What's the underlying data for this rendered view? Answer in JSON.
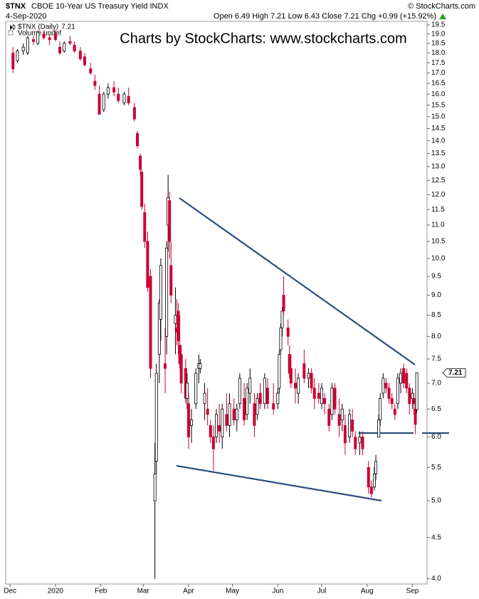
{
  "header": {
    "symbol": "$TNX",
    "name": "CBOE 10-Year US Treasury Yield INDX",
    "source": "© StockCharts.com",
    "date": "4-Sep-2020",
    "quote": "Open 6.49  High 7.21  Low 6.43  Close 7.21  Chg +0.99 (+15.92%)"
  },
  "chart_data": {
    "type": "candlestick",
    "watermark": "Charts by StockCharts:  www.stockcharts.com",
    "volume_label": "Volume undef",
    "log_scale": true,
    "grid": false,
    "up_color": "#000000",
    "down_color": "#cc0033",
    "xlim": [
      -3,
      285
    ],
    "xticks": [
      {
        "value": 0,
        "label": "Dec"
      },
      {
        "value": 31,
        "label": "2020"
      },
      {
        "value": 62,
        "label": "Feb"
      },
      {
        "value": 91,
        "label": "Mar"
      },
      {
        "value": 122,
        "label": "Apr"
      },
      {
        "value": 152,
        "label": "May"
      },
      {
        "value": 183,
        "label": "Jun"
      },
      {
        "value": 213,
        "label": "Jul"
      },
      {
        "value": 244,
        "label": "Aug"
      },
      {
        "value": 275,
        "label": "Sep"
      }
    ],
    "ylim": [
      3.94,
      19.7
    ],
    "yticks": [
      {
        "value": 4,
        "label": "4.0"
      },
      4.5,
      {
        "value": 5,
        "label": "5.0"
      },
      5.5,
      {
        "value": 6,
        "label": "6.0"
      },
      6.5,
      {
        "value": 7,
        "label": "7.0"
      },
      7.5,
      {
        "value": 8,
        "label": "8.0"
      },
      8.5,
      {
        "value": 9,
        "label": "9.0"
      },
      9.5,
      {
        "value": 10,
        "label": "10.0"
      },
      10.5,
      {
        "value": 11,
        "label": "11.0"
      },
      11.5,
      {
        "value": 12,
        "label": "12.0"
      },
      12.5,
      {
        "value": 13,
        "label": "13.0"
      },
      13.5,
      {
        "value": 14,
        "label": "14.0"
      },
      14.5,
      {
        "value": 15,
        "label": "15.0"
      },
      15.5,
      {
        "value": 16,
        "label": "16.0"
      },
      16.5,
      {
        "value": 17,
        "label": "17.0"
      },
      17.5,
      {
        "value": 18,
        "label": "18.0"
      },
      18.5,
      {
        "value": 19,
        "label": "19.0"
      },
      19.5
    ],
    "series": [
      {
        "name": "$TNX (Daily)",
        "x": [
          2,
          5,
          9,
          12,
          16,
          19,
          23,
          27,
          31,
          34,
          37,
          41,
          44,
          48,
          51,
          55,
          58,
          61,
          64,
          67,
          71,
          74,
          78,
          81,
          85,
          87,
          89,
          90,
          92,
          94,
          96,
          99,
          100,
          102,
          103,
          106,
          107,
          108,
          109,
          110,
          113,
          114,
          115,
          116,
          117,
          120,
          121,
          122,
          124,
          127,
          129,
          130,
          133,
          135,
          137,
          139,
          141,
          143,
          145,
          148,
          150,
          153,
          155,
          157,
          160,
          162,
          164,
          167,
          169,
          171,
          174,
          176,
          180,
          183,
          184,
          185,
          186,
          187,
          190,
          191,
          192,
          195,
          197,
          201,
          204,
          206,
          208,
          211,
          213,
          215,
          218,
          220,
          222,
          225,
          227,
          229,
          232,
          234,
          236,
          239,
          241,
          245,
          247,
          249,
          250,
          252,
          253,
          255,
          257,
          259,
          261,
          263,
          265,
          267,
          269,
          271,
          273,
          275,
          276,
          277,
          278
        ],
        "open": [
          18.0,
          17.6,
          18.1,
          18.0,
          18.7,
          18.5,
          19.0,
          18.8,
          19.0,
          18.3,
          18.1,
          18.6,
          18.4,
          18.1,
          17.8,
          17.2,
          16.6,
          16.0,
          15.3,
          16.0,
          16.3,
          16.0,
          15.6,
          15.9,
          15.4,
          14.3,
          13.4,
          12.8,
          11.4,
          10.5,
          9.5,
          5.0,
          5.6,
          7.6,
          8.4,
          7.4,
          8.0,
          11.0,
          11.8,
          9.8,
          8.3,
          8.2,
          8.6,
          7.8,
          7.6,
          7.3,
          6.7,
          6.6,
          6.2,
          6.6,
          7.3,
          7.3,
          6.6,
          6.5,
          6.2,
          6.0,
          6.0,
          6.2,
          6.0,
          6.4,
          6.2,
          6.5,
          6.3,
          6.6,
          6.7,
          6.4,
          6.8,
          6.6,
          6.4,
          6.8,
          6.6,
          6.9,
          6.6,
          6.6,
          6.9,
          7.7,
          8.2,
          9.0,
          8.2,
          7.6,
          7.3,
          7.0,
          6.8,
          7.4,
          7.1,
          7.2,
          6.9,
          6.8,
          6.6,
          6.7,
          6.5,
          6.4,
          6.9,
          6.4,
          6.3,
          6.2,
          6.0,
          6.3,
          6.0,
          5.9,
          6.0,
          5.5,
          5.2,
          5.2,
          5.4,
          6.0,
          6.3,
          6.8,
          7.0,
          6.9,
          6.7,
          6.5,
          6.6,
          7.0,
          7.3,
          7.2,
          6.9,
          6.7,
          6.7,
          6.5,
          6.49
        ],
        "high": [
          18.3,
          18.2,
          18.5,
          18.9,
          18.9,
          19.2,
          19.2,
          19.0,
          19.2,
          18.6,
          18.6,
          18.9,
          18.6,
          18.3,
          18.0,
          17.5,
          16.9,
          16.4,
          16.1,
          16.5,
          16.6,
          16.3,
          16.1,
          16.3,
          15.6,
          14.4,
          13.5,
          12.9,
          11.7,
          10.8,
          9.7,
          5.9,
          7.4,
          8.9,
          10.0,
          8.2,
          10.5,
          12.7,
          12.1,
          10.5,
          9.2,
          8.9,
          8.8,
          8.5,
          7.8,
          7.5,
          7.2,
          6.8,
          6.5,
          7.3,
          7.6,
          7.5,
          7.0,
          6.9,
          6.3,
          6.2,
          6.5,
          6.6,
          6.6,
          6.8,
          6.8,
          6.7,
          6.6,
          7.2,
          7.0,
          7.0,
          7.3,
          6.8,
          6.8,
          7.0,
          7.2,
          7.1,
          7.0,
          6.9,
          7.7,
          8.3,
          8.7,
          9.5,
          8.4,
          7.8,
          7.6,
          7.3,
          7.2,
          7.7,
          7.3,
          7.3,
          7.1,
          7.0,
          7.0,
          6.8,
          6.6,
          7.0,
          7.0,
          6.7,
          6.6,
          6.4,
          6.5,
          6.5,
          6.1,
          6.1,
          6.1,
          5.6,
          5.3,
          5.5,
          5.7,
          6.4,
          6.8,
          7.2,
          7.1,
          7.0,
          6.8,
          6.6,
          7.2,
          7.3,
          7.4,
          7.3,
          7.0,
          6.9,
          6.8,
          6.6,
          7.21
        ],
        "low": [
          17.0,
          17.5,
          17.9,
          17.9,
          18.4,
          18.4,
          18.7,
          18.4,
          18.6,
          17.9,
          18.0,
          18.4,
          18.0,
          17.6,
          17.3,
          16.9,
          16.2,
          15.1,
          15.2,
          15.8,
          15.9,
          15.6,
          15.5,
          15.5,
          14.8,
          13.7,
          12.7,
          11.5,
          10.3,
          9.1,
          7.1,
          4.0,
          5.4,
          7.0,
          7.9,
          6.8,
          7.6,
          10.2,
          10.0,
          8.8,
          7.6,
          7.8,
          7.6,
          7.3,
          6.8,
          6.6,
          6.5,
          5.8,
          5.9,
          6.5,
          7.0,
          7.2,
          6.3,
          6.2,
          5.9,
          5.45,
          5.9,
          5.9,
          5.8,
          6.1,
          6.0,
          6.2,
          6.1,
          6.5,
          6.2,
          6.3,
          6.6,
          6.0,
          6.3,
          6.5,
          6.5,
          6.5,
          6.4,
          6.5,
          6.8,
          7.6,
          8.0,
          8.5,
          7.8,
          7.1,
          6.9,
          6.6,
          6.6,
          7.0,
          6.9,
          6.8,
          6.5,
          6.6,
          6.5,
          6.4,
          6.1,
          6.3,
          6.4,
          6.0,
          6.1,
          5.7,
          5.9,
          6.0,
          5.7,
          5.7,
          5.7,
          5.1,
          5.05,
          5.15,
          5.3,
          6.0,
          6.2,
          6.7,
          6.8,
          6.6,
          6.5,
          6.3,
          6.5,
          6.8,
          6.9,
          6.8,
          6.4,
          6.5,
          6.4,
          6.05,
          6.43
        ],
        "close": [
          17.2,
          18.1,
          18.3,
          18.8,
          18.6,
          19.1,
          18.8,
          18.7,
          18.7,
          18.0,
          18.5,
          18.5,
          18.1,
          17.7,
          17.4,
          17.0,
          16.4,
          15.1,
          16.0,
          16.3,
          16.1,
          15.7,
          16.0,
          15.6,
          14.9,
          13.8,
          12.9,
          11.6,
          10.5,
          9.2,
          7.3,
          5.4,
          7.2,
          8.8,
          9.8,
          7.3,
          10.3,
          11.9,
          10.5,
          9.0,
          8.5,
          8.1,
          7.9,
          7.4,
          7.0,
          6.7,
          7.0,
          6.0,
          6.3,
          7.2,
          7.4,
          7.4,
          6.8,
          6.4,
          6.0,
          5.8,
          6.4,
          6.1,
          6.5,
          6.2,
          6.6,
          6.3,
          6.5,
          7.1,
          6.3,
          6.9,
          7.1,
          6.2,
          6.7,
          6.6,
          7.1,
          6.6,
          6.5,
          6.8,
          7.6,
          8.2,
          8.6,
          8.6,
          8.0,
          7.2,
          7.0,
          6.9,
          7.1,
          7.1,
          7.2,
          6.9,
          6.7,
          6.7,
          6.9,
          6.6,
          6.2,
          6.9,
          6.5,
          6.2,
          6.5,
          5.9,
          6.4,
          6.1,
          5.8,
          6.0,
          5.8,
          5.2,
          5.1,
          5.4,
          5.6,
          6.3,
          6.7,
          7.1,
          6.9,
          6.7,
          6.6,
          6.4,
          7.1,
          7.2,
          7.0,
          6.9,
          6.6,
          6.8,
          6.6,
          6.22,
          7.21
        ]
      }
    ]
  }
}
